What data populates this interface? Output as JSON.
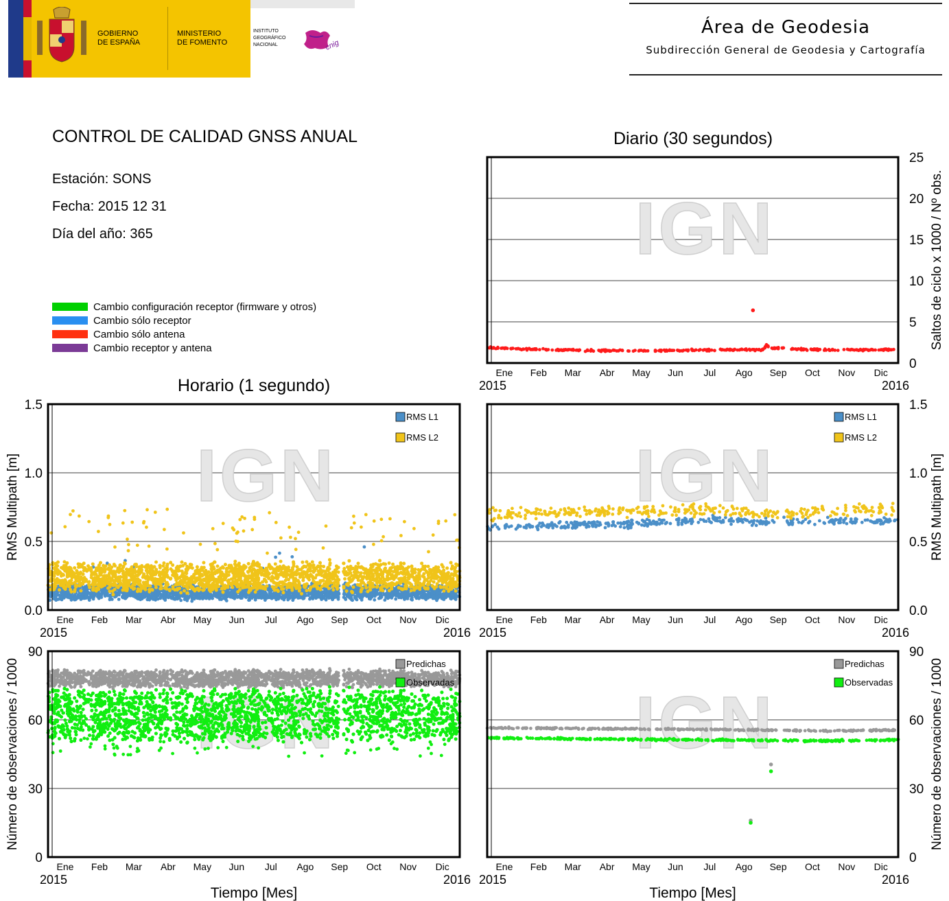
{
  "header": {
    "gov_line1": "GOBIERNO",
    "gov_line2": "DE ESPAÑA",
    "ministry_line1": "MINISTERIO",
    "ministry_line2": "DE FOMENTO",
    "ign_line1": "INSTITUTO",
    "ign_line2": "GEOGRÁFICO",
    "ign_line3": "NACIONAL",
    "cnig_logo_text": "cnig",
    "area_title": "Área de Geodesia",
    "area_subtitle": "Subdirección General de Geodesia y Cartografía"
  },
  "info": {
    "title": "CONTROL DE CALIDAD GNSS ANUAL",
    "station": "Estación: SONS",
    "date": "Fecha: 2015 12 31",
    "doy": "Día del año: 365"
  },
  "legend": [
    {
      "label": "Cambio configuración receptor (firmware y otros)",
      "color": "#00d000"
    },
    {
      "label": "Cambio sólo receptor",
      "color": "#2a8ff0"
    },
    {
      "label": "Cambio sólo antena",
      "color": "#ff3010"
    },
    {
      "label": "Cambio receptor y antena",
      "color": "#7b3a96"
    }
  ],
  "section_titles": {
    "daily": "Diario (30 segundos)",
    "hourly": "Horario (1 segundo)"
  },
  "watermark": "IGN",
  "chart_data": [
    {
      "id": "daily-cycle-slips",
      "type": "scatter",
      "ylabel": "Saltos de ciclo x 1000 / Nº obs.",
      "ylim": [
        0,
        25
      ],
      "yticks": [
        "0",
        "5",
        "10",
        "15",
        "20",
        "25"
      ],
      "xticks": [
        "Ene",
        "Feb",
        "Mar",
        "Abr",
        "May",
        "Jun",
        "Jul",
        "Ago",
        "Sep",
        "Oct",
        "Nov",
        "Dic"
      ],
      "xyears": [
        "2015",
        "2016"
      ],
      "grid": true,
      "series": [
        {
          "color": "#ff1a1a",
          "base": [
            [
              0,
              1.9
            ],
            [
              30,
              1.7
            ],
            [
              60,
              1.6
            ],
            [
              100,
              1.5
            ],
            [
              150,
              1.5
            ],
            [
              200,
              1.6
            ],
            [
              245,
              1.6
            ],
            [
              248,
              2.2
            ],
            [
              252,
              1.8
            ],
            [
              300,
              1.6
            ],
            [
              365,
              1.6
            ]
          ],
          "jitter": 0.15,
          "count": 330,
          "gaps": [],
          "extra_points": [
            [
              236,
              6.4
            ]
          ]
        }
      ]
    },
    {
      "id": "hourly-multipath",
      "type": "scatter",
      "ylabel": "RMS Multipath [m]",
      "ylim": [
        0,
        1.5
      ],
      "yticks": [
        "0.0",
        "0.5",
        "1.0",
        "1.5"
      ],
      "xticks": [
        "Ene",
        "Feb",
        "Mar",
        "Abr",
        "May",
        "Jun",
        "Jul",
        "Ago",
        "Sep",
        "Oct",
        "Nov",
        "Dic"
      ],
      "xyears": [
        "2015",
        "2016"
      ],
      "grid": true,
      "legend": [
        "RMS L1",
        "RMS L2"
      ],
      "series": [
        {
          "name": "RMS L1",
          "color": "#4b8fc8",
          "base": [
            [
              0,
              0.13
            ],
            [
              365,
              0.13
            ]
          ],
          "jitter": 0.03,
          "band": 0.09,
          "count": 2500,
          "gaps": [
            [
              258,
              262
            ]
          ],
          "outliers": 10,
          "outlier_range": [
            0.3,
            0.48
          ]
        },
        {
          "name": "RMS L2",
          "color": "#f0c41a",
          "base": [
            [
              0,
              0.24
            ],
            [
              365,
              0.24
            ]
          ],
          "jitter": 0.06,
          "band": 0.17,
          "count": 5500,
          "gaps": [
            [
              258,
              262
            ]
          ],
          "outliers": 80,
          "outlier_range": [
            0.4,
            0.74
          ]
        }
      ]
    },
    {
      "id": "daily-multipath",
      "type": "scatter",
      "ylabel": "RMS Multipath [m]",
      "ylim": [
        0,
        1.5
      ],
      "yticks": [
        "0.0",
        "0.5",
        "1.0",
        "1.5"
      ],
      "xticks": [
        "Ene",
        "Feb",
        "Mar",
        "Abr",
        "May",
        "Jun",
        "Jul",
        "Ago",
        "Sep",
        "Oct",
        "Nov",
        "Dic"
      ],
      "xyears": [
        "2015",
        "2016"
      ],
      "grid": true,
      "legend": [
        "RMS L1",
        "RMS L2"
      ],
      "series": [
        {
          "name": "RMS L1",
          "color": "#4b8fc8",
          "base": [
            [
              0,
              0.6
            ],
            [
              120,
              0.63
            ],
            [
              200,
              0.66
            ],
            [
              250,
              0.64
            ],
            [
              365,
              0.65
            ]
          ],
          "jitter": 0.04,
          "count": 360,
          "gaps": [
            [
              258,
              263
            ]
          ]
        },
        {
          "name": "RMS L2",
          "color": "#f0c41a",
          "base": [
            [
              0,
              0.7
            ],
            [
              120,
              0.72
            ],
            [
              200,
              0.73
            ],
            [
              250,
              0.7
            ],
            [
              365,
              0.74
            ]
          ],
          "jitter": 0.06,
          "count": 360,
          "gaps": [
            [
              258,
              263
            ]
          ]
        }
      ]
    },
    {
      "id": "hourly-observations",
      "type": "scatter",
      "ylabel": "Número de observaciones / 1000",
      "xlabel": "Tiempo [Mes]",
      "ylim": [
        0,
        90
      ],
      "yticks": [
        "0",
        "30",
        "60",
        "90"
      ],
      "xticks": [
        "Ene",
        "Feb",
        "Mar",
        "Abr",
        "May",
        "Jun",
        "Jul",
        "Ago",
        "Sep",
        "Oct",
        "Nov",
        "Dic"
      ],
      "xyears": [
        "2015",
        "2016"
      ],
      "grid": true,
      "legend": [
        "Predichas",
        "Observadas"
      ],
      "series": [
        {
          "name": "Predichas",
          "color": "#999999",
          "base": [
            [
              0,
              78
            ],
            [
              365,
              78
            ]
          ],
          "jitter": 2.0,
          "band": 6,
          "count": 2200,
          "gaps": [
            [
              258,
              262
            ]
          ]
        },
        {
          "name": "Observadas",
          "color": "#11ee11",
          "base": [
            [
              0,
              62
            ],
            [
              365,
              62
            ]
          ],
          "jitter": 4,
          "band": 20,
          "count": 9000,
          "gaps": [
            [
              258,
              262
            ]
          ],
          "outliers": 60,
          "outlier_range": [
            44,
            52
          ]
        }
      ]
    },
    {
      "id": "daily-observations",
      "type": "scatter",
      "ylabel": "Número de observaciones / 1000",
      "xlabel": "Tiempo [Mes]",
      "ylim": [
        0,
        90
      ],
      "yticks": [
        "0",
        "30",
        "60",
        "90"
      ],
      "xticks": [
        "Ene",
        "Feb",
        "Mar",
        "Abr",
        "May",
        "Jun",
        "Jul",
        "Ago",
        "Sep",
        "Oct",
        "Nov",
        "Dic"
      ],
      "xyears": [
        "2015",
        "2016"
      ],
      "grid": true,
      "legend": [
        "Predichas",
        "Observadas"
      ],
      "series": [
        {
          "name": "Predichas",
          "color": "#999999",
          "base": [
            [
              0,
              56.5
            ],
            [
              200,
              55.8
            ],
            [
              300,
              55.2
            ],
            [
              365,
              55.5
            ]
          ],
          "jitter": 0.5,
          "count": 360,
          "gaps": [
            [
              258,
              263
            ]
          ],
          "extra_points": [
            [
              252,
              40.5
            ],
            [
              234,
              16
            ]
          ]
        },
        {
          "name": "Observadas",
          "color": "#11ee11",
          "base": [
            [
              0,
              52
            ],
            [
              200,
              51.2
            ],
            [
              300,
              50.8
            ],
            [
              365,
              51.2
            ]
          ],
          "jitter": 0.6,
          "count": 360,
          "gaps": [
            [
              258,
              263
            ]
          ],
          "extra_points": [
            [
              252,
              37.5
            ],
            [
              234,
              15
            ]
          ]
        }
      ]
    }
  ]
}
